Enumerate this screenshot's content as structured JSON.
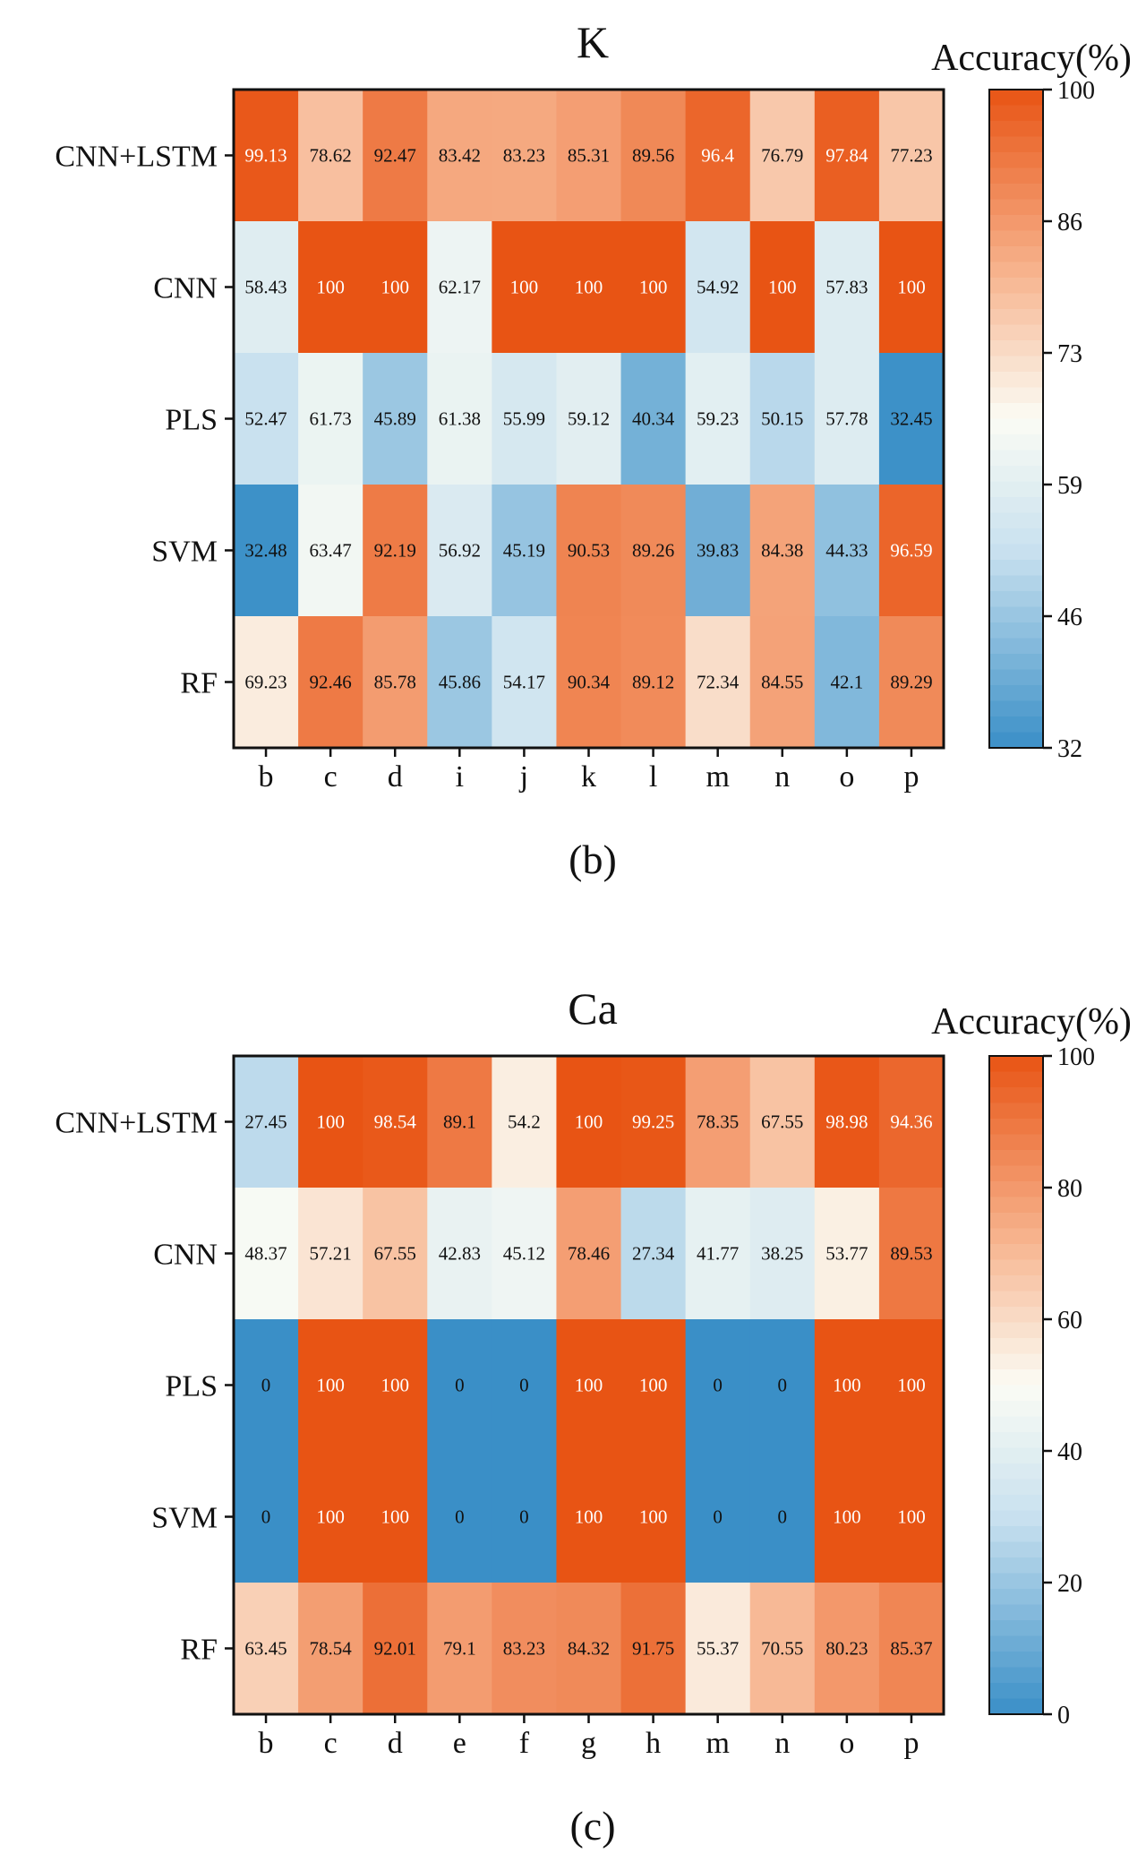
{
  "colors": {
    "low": "#3a8fc7",
    "mid_low": "#c9e1ef",
    "mid": "#fbfcf4",
    "mid_high": "#f7b48f",
    "high": "#e85414",
    "text": "#111111",
    "text_on_dark": "#ffffff"
  },
  "chart_data": [
    {
      "type": "heatmap",
      "title": "K",
      "caption": "(b)",
      "colorbar_title": "Accuracy(%)",
      "colorbar_range": [
        32,
        100
      ],
      "colorbar_ticks": [
        "100",
        "86",
        "73",
        "59",
        "46",
        "32"
      ],
      "rows": [
        "CNN+LSTM",
        "CNN",
        "PLS",
        "SVM",
        "RF"
      ],
      "columns": [
        "b",
        "c",
        "d",
        "i",
        "j",
        "k",
        "l",
        "m",
        "n",
        "o",
        "p"
      ],
      "values": [
        [
          99.13,
          78.62,
          92.47,
          83.42,
          83.23,
          85.31,
          89.56,
          96.4,
          76.79,
          97.84,
          77.23
        ],
        [
          58.43,
          100,
          100,
          62.17,
          100,
          100,
          100,
          54.92,
          100,
          57.83,
          100
        ],
        [
          52.47,
          61.73,
          45.89,
          61.38,
          55.99,
          59.12,
          40.34,
          59.23,
          50.15,
          57.78,
          32.45
        ],
        [
          32.48,
          63.47,
          92.19,
          56.92,
          45.19,
          90.53,
          89.26,
          39.83,
          84.38,
          44.33,
          96.59
        ],
        [
          69.23,
          92.46,
          85.78,
          45.86,
          54.17,
          90.34,
          89.12,
          72.34,
          84.55,
          42.1,
          89.29
        ]
      ],
      "labels": [
        [
          "99.13",
          "78.62",
          "92.47",
          "83.42",
          "83.23",
          "85.31",
          "89.56",
          "96.4",
          "76.79",
          "97.84",
          "77.23"
        ],
        [
          "58.43",
          "100",
          "100",
          "62.17",
          "100",
          "100",
          "100",
          "54.92",
          "100",
          "57.83",
          "100"
        ],
        [
          "52.47",
          "61.73",
          "45.89",
          "61.38",
          "55.99",
          "59.12",
          "40.34",
          "59.23",
          "50.15",
          "57.78",
          "32.45"
        ],
        [
          "32.48",
          "63.47",
          "92.19",
          "56.92",
          "45.19",
          "90.53",
          "89.26",
          "39.83",
          "84.38",
          "44.33",
          "96.59"
        ],
        [
          "69.23",
          "92.46",
          "85.78",
          "45.86",
          "54.17",
          "90.34",
          "89.12",
          "72.34",
          "84.55",
          "42.1",
          "89.29"
        ]
      ]
    },
    {
      "type": "heatmap",
      "title": "Ca",
      "caption": "(c)",
      "colorbar_title": "Accuracy(%)",
      "colorbar_range": [
        0,
        100
      ],
      "colorbar_ticks": [
        "100",
        "80",
        "60",
        "40",
        "20",
        "0"
      ],
      "rows": [
        "CNN+LSTM",
        "CNN",
        "PLS",
        "SVM",
        "RF"
      ],
      "columns": [
        "b",
        "c",
        "d",
        "e",
        "f",
        "g",
        "h",
        "m",
        "n",
        "o",
        "p"
      ],
      "values": [
        [
          27.45,
          100,
          98.54,
          89.1,
          54.2,
          100,
          99.25,
          78.35,
          67.55,
          98.98,
          94.36
        ],
        [
          48.37,
          57.21,
          67.55,
          42.83,
          45.12,
          78.46,
          27.34,
          41.77,
          38.25,
          53.77,
          89.53
        ],
        [
          0,
          100,
          100,
          0,
          0,
          100,
          100,
          0,
          0,
          100,
          100
        ],
        [
          0,
          100,
          100,
          0,
          0,
          100,
          100,
          0,
          0,
          100,
          100
        ],
        [
          63.45,
          78.54,
          92.01,
          79.1,
          83.23,
          84.32,
          91.75,
          55.37,
          70.55,
          80.23,
          85.37
        ]
      ],
      "labels": [
        [
          "27.45",
          "100",
          "98.54",
          "89.1",
          "54.2",
          "100",
          "99.25",
          "78.35",
          "67.55",
          "98.98",
          "94.36"
        ],
        [
          "48.37",
          "57.21",
          "67.55",
          "42.83",
          "45.12",
          "78.46",
          "27.34",
          "41.77",
          "38.25",
          "53.77",
          "89.53"
        ],
        [
          "0",
          "100",
          "100",
          "0",
          "0",
          "100",
          "100",
          "0",
          "0",
          "100",
          "100"
        ],
        [
          "0",
          "100",
          "100",
          "0",
          "0",
          "100",
          "100",
          "0",
          "0",
          "100",
          "100"
        ],
        [
          "63.45",
          "78.54",
          "92.01",
          "79.1",
          "83.23",
          "84.32",
          "91.75",
          "55.37",
          "70.55",
          "80.23",
          "85.37"
        ]
      ]
    }
  ]
}
